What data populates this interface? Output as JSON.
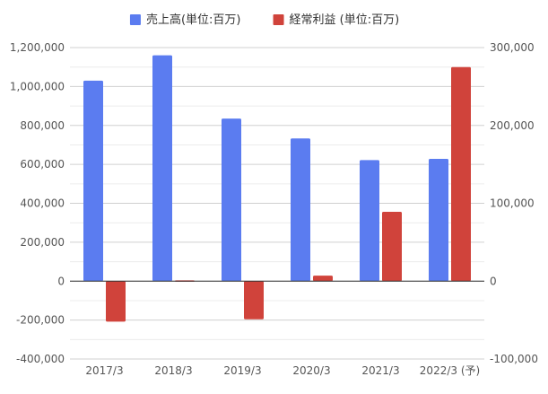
{
  "chart_data": {
    "type": "bar",
    "categories": [
      "2017/3",
      "2018/3",
      "2019/3",
      "2020/3",
      "2021/3",
      "2022/3 (予)"
    ],
    "series": [
      {
        "name": "売上高(単位:百万)",
        "axis": "left",
        "color": "#5b7cf0",
        "values": [
          1030000,
          1160000,
          835000,
          733000,
          622000,
          628000
        ]
      },
      {
        "name": "経常利益 (単位:百万)",
        "axis": "right",
        "color": "#d0433b",
        "values": [
          -52000,
          1000,
          -49000,
          7000,
          89000,
          275000
        ]
      }
    ],
    "left_axis": {
      "ylim": [
        -400000,
        1200000
      ],
      "ticks": [
        -400000,
        -200000,
        0,
        200000,
        400000,
        600000,
        800000,
        1000000,
        1200000
      ],
      "tick_labels": [
        "-400,000",
        "-200,000",
        "0",
        "200,000",
        "400,000",
        "600,000",
        "800,000",
        "1,000,000",
        "1,200,000"
      ]
    },
    "right_axis": {
      "ylim": [
        -100000,
        300000
      ],
      "ticks": [
        -100000,
        0,
        100000,
        200000,
        300000
      ],
      "tick_labels": [
        "-100,000",
        "0",
        "100,000",
        "200,000",
        "300,000"
      ]
    },
    "grid": true,
    "legend_position": "top-center",
    "title": "",
    "xlabel": "",
    "ylabel": ""
  }
}
